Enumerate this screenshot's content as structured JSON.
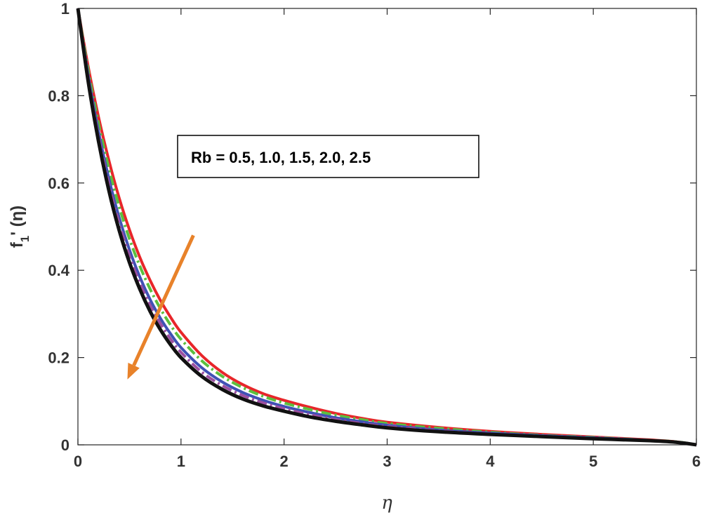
{
  "chart_data": {
    "type": "line",
    "title": "",
    "xlabel": "η",
    "ylabel_main": "f",
    "ylabel_sub": "1",
    "ylabel_tail": "' (η)",
    "xlim": [
      0,
      6
    ],
    "ylim": [
      0,
      1
    ],
    "xticks": [
      "0",
      "1",
      "2",
      "3",
      "4",
      "5",
      "6"
    ],
    "yticks": [
      "0",
      "0.2",
      "0.4",
      "0.6",
      "0.8",
      "1"
    ],
    "grid": false,
    "annotation": "Rb = 0.5, 1.0, 1.5, 2.0, 2.5",
    "arrow": {
      "from": [
        1.12,
        0.48
      ],
      "to": [
        0.48,
        0.15
      ],
      "color": "#E8822A"
    },
    "x": [
      0,
      0.1,
      0.2,
      0.3,
      0.4,
      0.5,
      0.6,
      0.7,
      0.8,
      0.9,
      1.0,
      1.2,
      1.4,
      1.6,
      1.8,
      2.0,
      2.25,
      2.5,
      2.75,
      3.0,
      3.5,
      4.0,
      4.5,
      5.0,
      5.5,
      5.8,
      6.0
    ],
    "series": [
      {
        "color": "#E8262A",
        "dash": "solid",
        "values": [
          1.0,
          0.866,
          0.751,
          0.652,
          0.566,
          0.493,
          0.43,
          0.377,
          0.331,
          0.292,
          0.258,
          0.205,
          0.166,
          0.138,
          0.117,
          0.102,
          0.086,
          0.072,
          0.061,
          0.052,
          0.04,
          0.031,
          0.024,
          0.018,
          0.012,
          0.007,
          0.0
        ]
      },
      {
        "color": "#5BBF3F",
        "dash": "dashdot",
        "values": [
          1.0,
          0.858,
          0.736,
          0.633,
          0.546,
          0.472,
          0.41,
          0.357,
          0.312,
          0.274,
          0.242,
          0.193,
          0.157,
          0.131,
          0.111,
          0.096,
          0.081,
          0.068,
          0.058,
          0.049,
          0.038,
          0.029,
          0.022,
          0.017,
          0.011,
          0.007,
          0.0
        ]
      },
      {
        "color": "#3F51B5",
        "dash": "solid",
        "values": [
          1.0,
          0.846,
          0.717,
          0.61,
          0.521,
          0.447,
          0.385,
          0.333,
          0.29,
          0.254,
          0.223,
          0.177,
          0.144,
          0.12,
          0.102,
          0.088,
          0.074,
          0.062,
          0.053,
          0.045,
          0.034,
          0.027,
          0.021,
          0.016,
          0.011,
          0.006,
          0.0
        ]
      },
      {
        "color": "#9B4FA0",
        "dash": "dashdot",
        "values": [
          1.0,
          0.839,
          0.706,
          0.597,
          0.507,
          0.433,
          0.371,
          0.32,
          0.278,
          0.242,
          0.212,
          0.167,
          0.136,
          0.113,
          0.096,
          0.083,
          0.069,
          0.058,
          0.049,
          0.042,
          0.032,
          0.025,
          0.02,
          0.015,
          0.01,
          0.006,
          0.0
        ]
      },
      {
        "color": "#111111",
        "dash": "solid",
        "values": [
          1.0,
          0.832,
          0.695,
          0.583,
          0.492,
          0.418,
          0.357,
          0.306,
          0.264,
          0.229,
          0.2,
          0.157,
          0.127,
          0.105,
          0.089,
          0.077,
          0.064,
          0.054,
          0.046,
          0.039,
          0.03,
          0.024,
          0.019,
          0.014,
          0.01,
          0.006,
          0.0
        ]
      }
    ]
  }
}
